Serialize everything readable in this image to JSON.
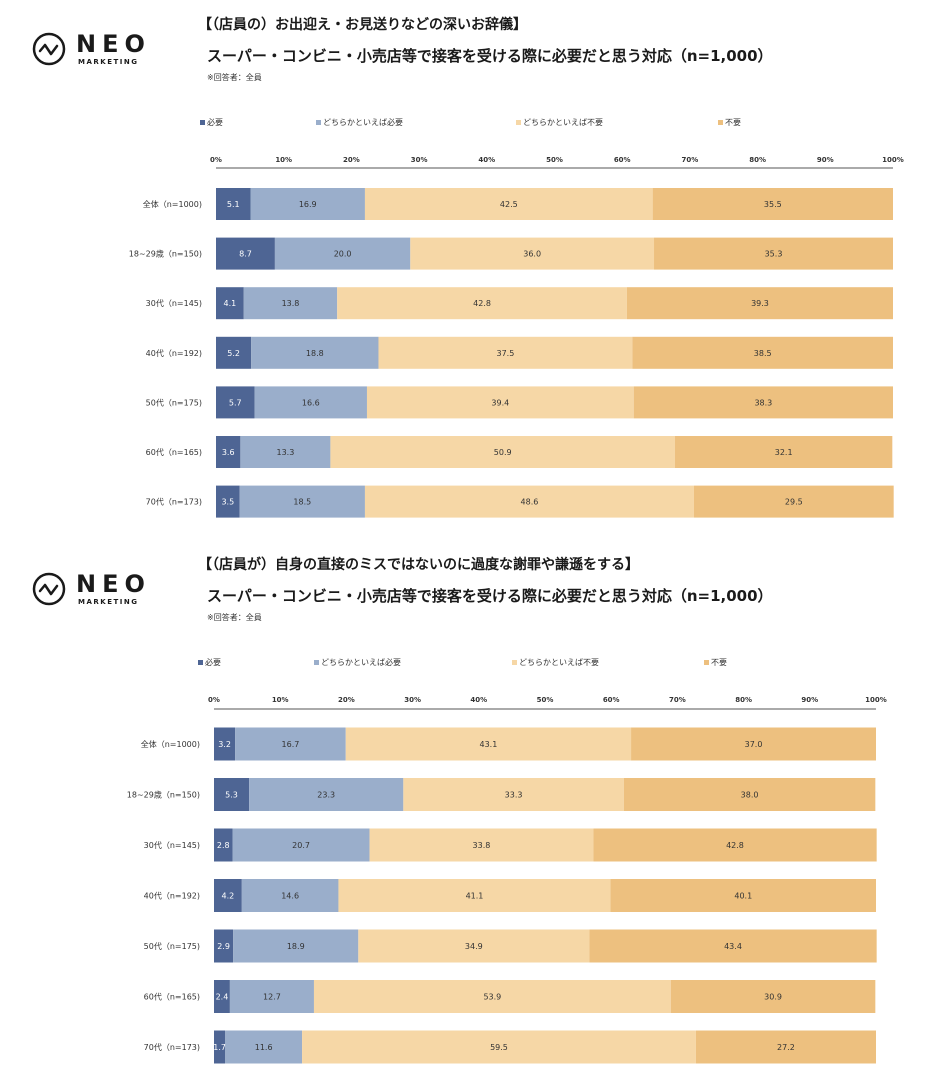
{
  "brand": {
    "name": "NEO",
    "sub": "MARKETING"
  },
  "colors": {
    "need": "#4e6594",
    "somewhat_need": "#9aaecb",
    "somewhat_unneeded": "#f6d7a6",
    "unneeded": "#edc07f",
    "axis": "#555555"
  },
  "chart_data": [
    {
      "type": "bar",
      "orientation": "horizontal",
      "stacked": true,
      "title": "【（店員の）お出迎え・お見送りなどの深いお辞儀】",
      "subtitle": "スーパー・コンビニ・小売店等で接客を受ける際に必要だと思う対応（n=1,000）",
      "note": "※回答者：全員",
      "xlim": [
        0,
        100
      ],
      "xticks": [
        "0%",
        "10%",
        "20%",
        "30%",
        "40%",
        "50%",
        "60%",
        "70%",
        "80%",
        "90%",
        "100%"
      ],
      "categories": [
        "全体（n=1000)",
        "18~29歳（n=150)",
        "30代（n=145)",
        "40代（n=192)",
        "50代（n=175)",
        "60代（n=165)",
        "70代（n=173)"
      ],
      "series": [
        {
          "name": "必要",
          "values": [
            5.1,
            8.7,
            4.1,
            5.2,
            5.7,
            3.6,
            3.5
          ]
        },
        {
          "name": "どちらかといえば必要",
          "values": [
            16.9,
            20.0,
            13.8,
            18.8,
            16.6,
            13.3,
            18.5
          ]
        },
        {
          "name": "どちらかといえば不要",
          "values": [
            42.5,
            36.0,
            42.8,
            37.5,
            39.4,
            50.9,
            48.6
          ]
        },
        {
          "name": "不要",
          "values": [
            35.5,
            35.3,
            39.3,
            38.5,
            38.3,
            32.1,
            29.5
          ]
        }
      ]
    },
    {
      "type": "bar",
      "orientation": "horizontal",
      "stacked": true,
      "title": "【（店員が）自身の直接のミスではないのに過度な謝罪や謙遜をする】",
      "subtitle": "スーパー・コンビニ・小売店等で接客を受ける際に必要だと思う対応（n=1,000）",
      "note": "※回答者：全員",
      "xlim": [
        0,
        100
      ],
      "xticks": [
        "0%",
        "10%",
        "20%",
        "30%",
        "40%",
        "50%",
        "60%",
        "70%",
        "80%",
        "90%",
        "100%"
      ],
      "categories": [
        "全体（n=1000)",
        "18~29歳（n=150)",
        "30代（n=145)",
        "40代（n=192)",
        "50代（n=175)",
        "60代（n=165)",
        "70代（n=173)"
      ],
      "series": [
        {
          "name": "必要",
          "values": [
            3.2,
            5.3,
            2.8,
            4.2,
            2.9,
            2.4,
            1.7
          ]
        },
        {
          "name": "どちらかといえば必要",
          "values": [
            16.7,
            23.3,
            20.7,
            14.6,
            18.9,
            12.7,
            11.6
          ]
        },
        {
          "name": "どちらかといえば不要",
          "values": [
            43.1,
            33.3,
            33.8,
            41.1,
            34.9,
            53.9,
            59.5
          ]
        },
        {
          "name": "不要",
          "values": [
            37.0,
            38.0,
            42.8,
            40.1,
            43.4,
            30.9,
            27.2
          ]
        }
      ]
    }
  ]
}
